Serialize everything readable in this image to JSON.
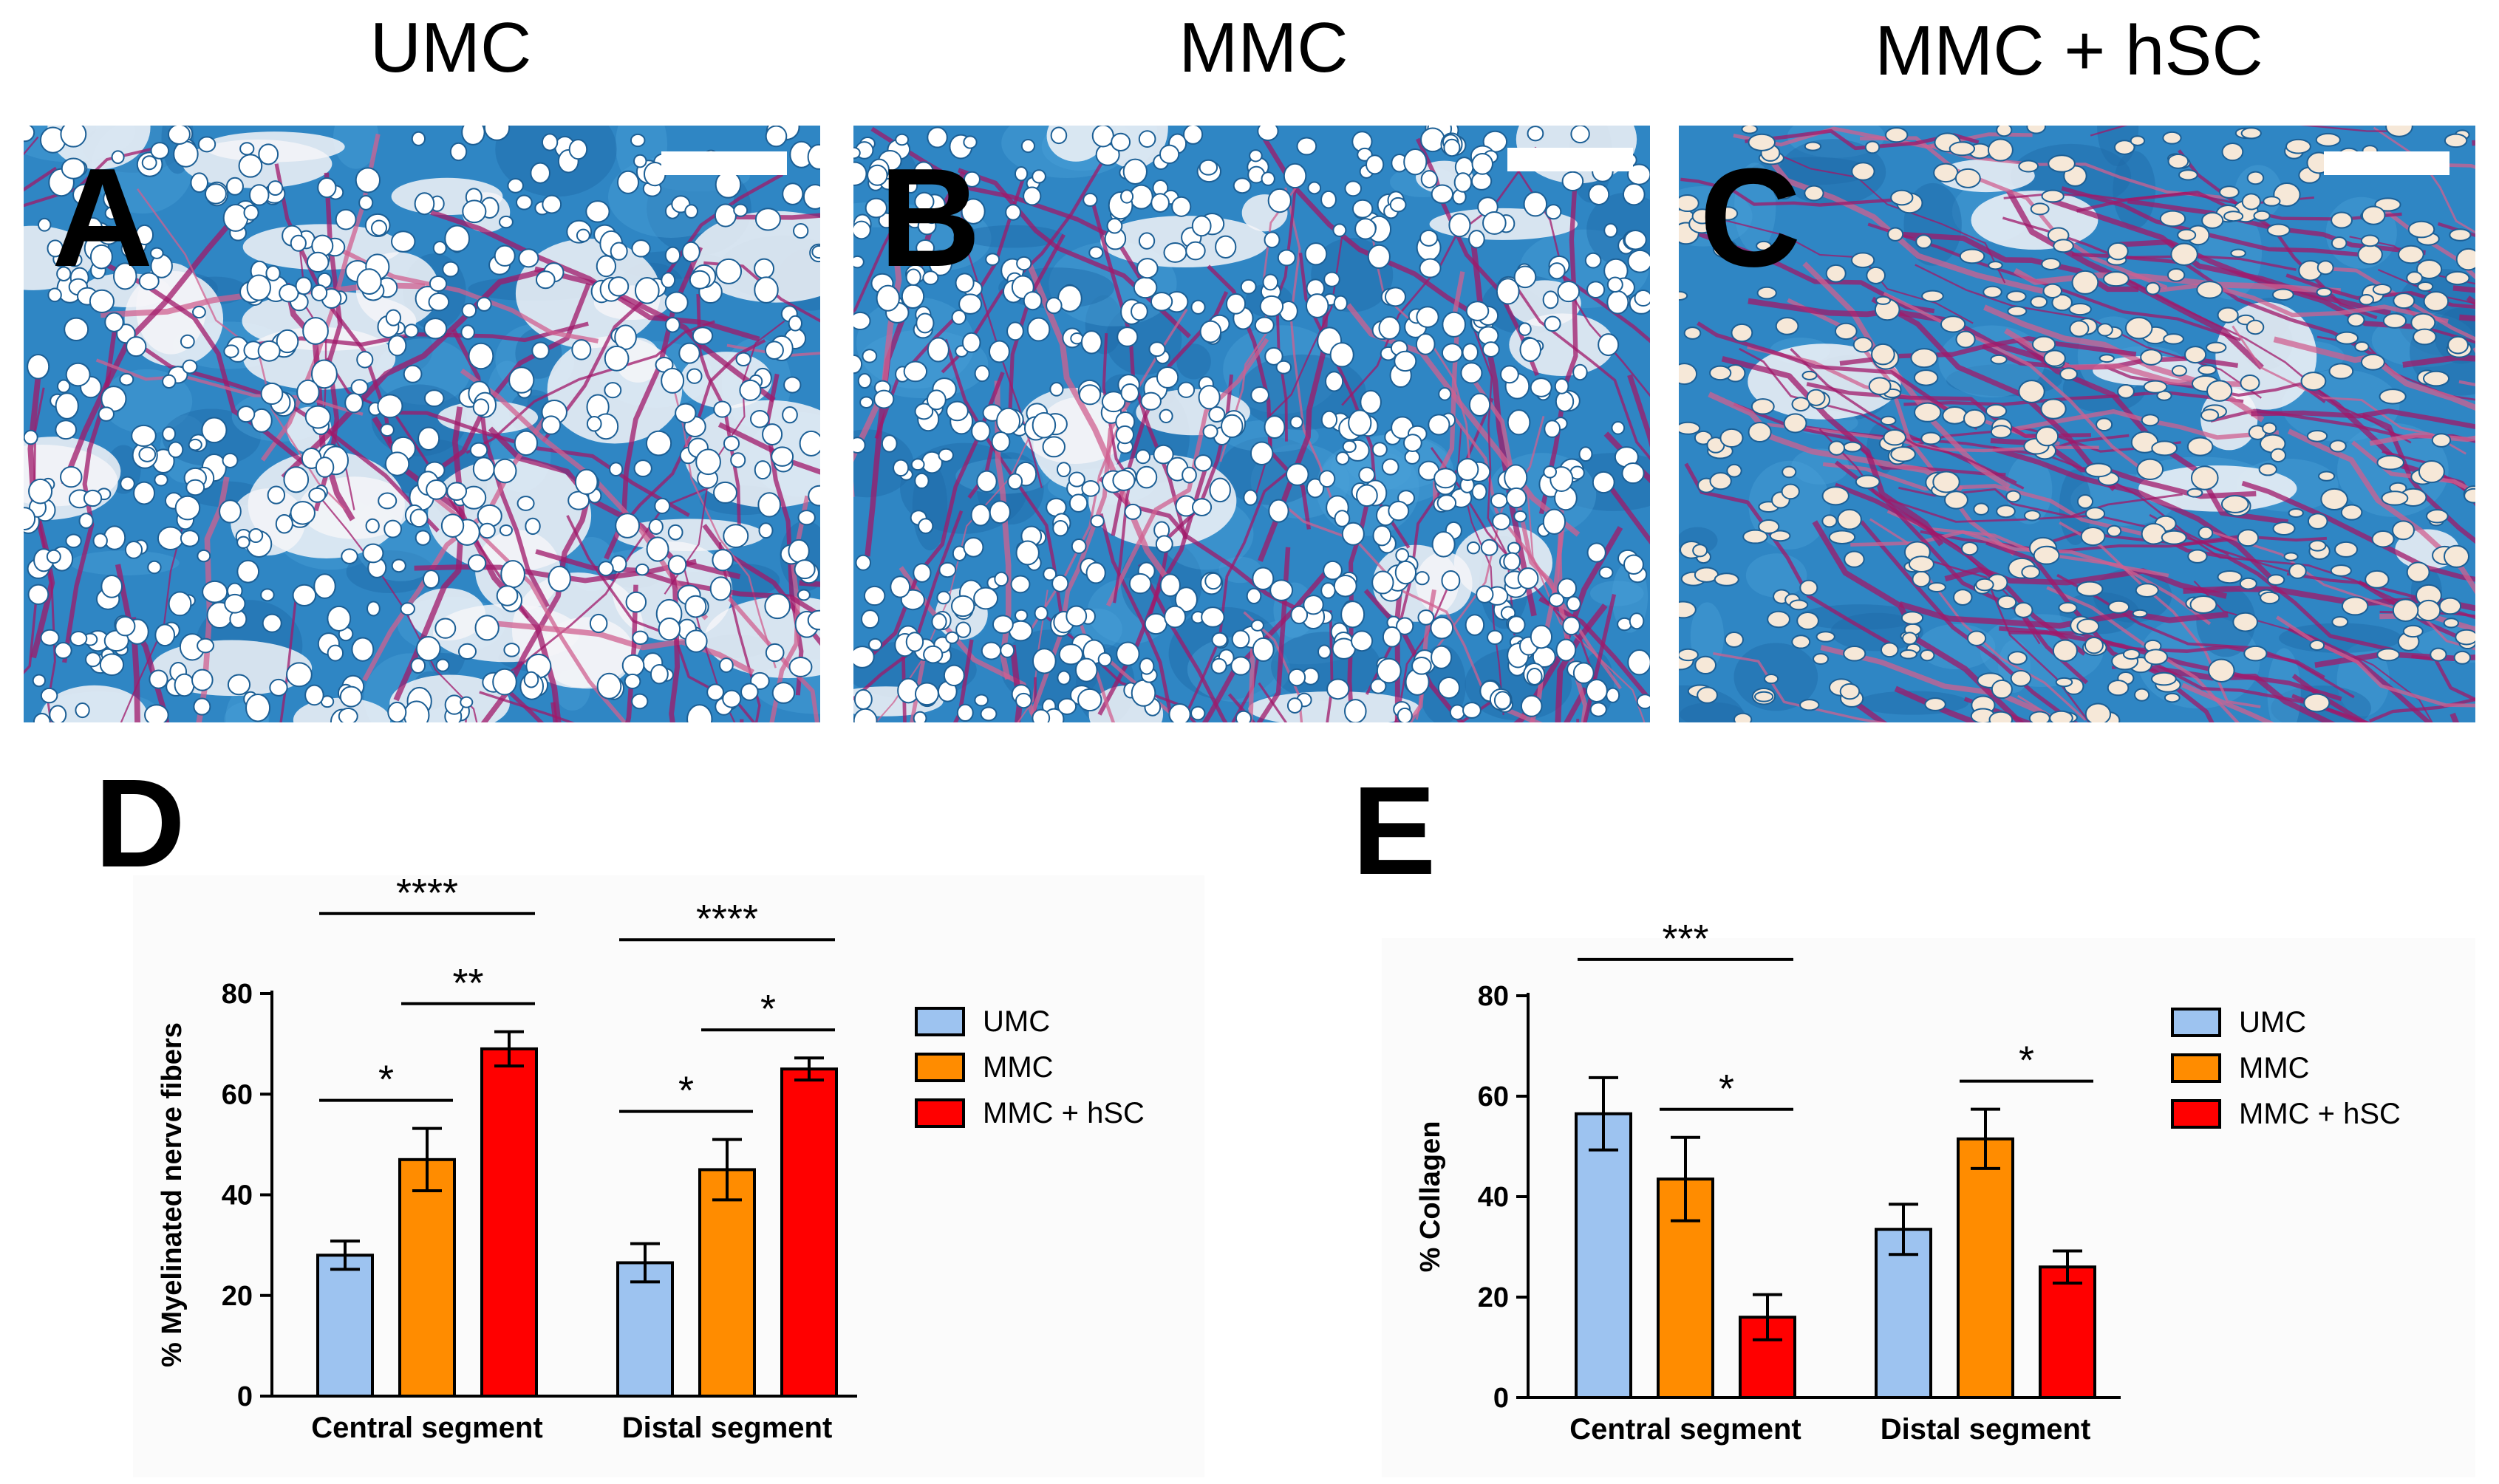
{
  "columns": [
    {
      "title": "UMC",
      "panel": "A"
    },
    {
      "title": "MMC",
      "panel": "B"
    },
    {
      "title": "MMC + hSC",
      "panel": "C"
    }
  ],
  "colors": {
    "UMC": "#9dc3f0",
    "MMC": "#ff8c00",
    "MMC + hSC": "#ff0000",
    "stain_blue": "#2f86c4",
    "stain_magenta": "#a0186a"
  },
  "chart_data": [
    {
      "panel": "D",
      "type": "bar",
      "categories": [
        "Central segment",
        "Distal segment"
      ],
      "ylabel": "% Myelinated nerve fibers",
      "ylim": [
        0,
        80
      ],
      "yticks": [
        0,
        20,
        40,
        60,
        80
      ],
      "legend_position": "right",
      "series": [
        {
          "name": "UMC",
          "values": [
            28,
            26.5
          ],
          "errors": [
            2.8,
            3.8
          ]
        },
        {
          "name": "MMC",
          "values": [
            47,
            45
          ],
          "errors": [
            6.2,
            6.0
          ]
        },
        {
          "name": "MMC + hSC",
          "values": [
            69,
            65
          ],
          "errors": [
            3.4,
            2.2
          ]
        }
      ],
      "significance": [
        {
          "category": 0,
          "from": 0,
          "to": 2,
          "label": "****"
        },
        {
          "category": 0,
          "from": 1,
          "to": 2,
          "label": "**"
        },
        {
          "category": 0,
          "from": 0,
          "to": 1,
          "label": "*"
        },
        {
          "category": 1,
          "from": 0,
          "to": 2,
          "label": "****"
        },
        {
          "category": 1,
          "from": 1,
          "to": 2,
          "label": "*"
        },
        {
          "category": 1,
          "from": 0,
          "to": 1,
          "label": "*"
        }
      ]
    },
    {
      "panel": "E",
      "type": "bar",
      "categories": [
        "Central segment",
        "Distal segment"
      ],
      "ylabel": "% Collagen",
      "ylim": [
        0,
        80
      ],
      "yticks": [
        0,
        20,
        40,
        60,
        80
      ],
      "legend_position": "right",
      "series": [
        {
          "name": "UMC",
          "values": [
            56.5,
            33.5
          ],
          "errors": [
            7.2,
            5.0
          ]
        },
        {
          "name": "MMC",
          "values": [
            43.5,
            51.5
          ],
          "errors": [
            8.3,
            5.9
          ]
        },
        {
          "name": "MMC + hSC",
          "values": [
            16,
            26
          ],
          "errors": [
            4.5,
            3.2
          ]
        }
      ],
      "significance": [
        {
          "category": 0,
          "from": 0,
          "to": 2,
          "label": "***"
        },
        {
          "category": 0,
          "from": 1,
          "to": 2,
          "label": "*"
        },
        {
          "category": 1,
          "from": 1,
          "to": 2,
          "label": "*"
        }
      ]
    }
  ]
}
